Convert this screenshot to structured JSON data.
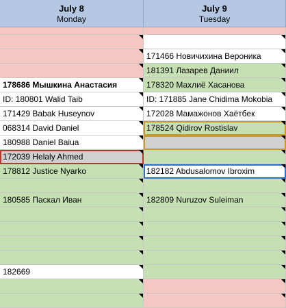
{
  "header": {
    "col1": {
      "date": "July 8",
      "day": "Monday"
    },
    "col2": {
      "date": "July 9",
      "day": "Tuesday"
    }
  },
  "rows": [
    {
      "a": "",
      "b": ""
    },
    {
      "a": "",
      "b": "171466 Новичихина Вероника"
    },
    {
      "a": "",
      "b": "181391 Лазарев Даниил"
    },
    {
      "a": "178686 Мышкина Анастасия",
      "b": "178320 Махлиё Хасанова"
    },
    {
      "a": "ID: 180801   Walid Taib",
      "b": "ID: 171885 Jane Chidima Mokobia"
    },
    {
      "a": "171429 Babak Huseynov",
      "b": "172028 Мамажонов Хаётбек"
    },
    {
      "a": "068314 David Daniel",
      "b": "178524 Qidirov Rostislav"
    },
    {
      "a": "180988 Daniel Baiua",
      "b": ""
    },
    {
      "a": "172039 Helaly Ahmed",
      "b": ""
    },
    {
      "a": "178812 Justice  Nyarko",
      "b": "182182 Abdusalomov Ibroxim"
    },
    {
      "a": "",
      "b": ""
    },
    {
      "a": "180585 Паскал Иван",
      "b": "182809 Nuruzov Suleiman"
    },
    {
      "a": "",
      "b": ""
    },
    {
      "a": "",
      "b": ""
    },
    {
      "a": "",
      "b": ""
    },
    {
      "a": "",
      "b": ""
    },
    {
      "a": "182669",
      "b": ""
    },
    {
      "a": "",
      "b": ""
    },
    {
      "a": "",
      "b": ""
    }
  ]
}
